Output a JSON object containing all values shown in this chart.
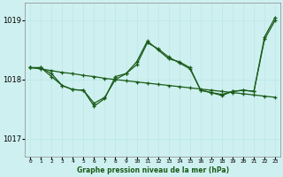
{
  "title": "Graphe pression niveau de la mer (hPa)",
  "bg_color": "#cff0f0",
  "grid_color": "#b8e8e8",
  "line_color": "#1a5c1a",
  "x_labels": [
    "0",
    "1",
    "2",
    "3",
    "4",
    "5",
    "6",
    "7",
    "8",
    "9",
    "10",
    "11",
    "12",
    "13",
    "14",
    "15",
    "16",
    "17",
    "18",
    "19",
    "20",
    "21",
    "22",
    "23"
  ],
  "ylim": [
    1016.7,
    1019.3
  ],
  "yticks": [
    1017,
    1018,
    1019
  ],
  "series1_x": [
    0,
    1,
    2,
    3,
    4,
    5,
    6,
    7,
    8,
    9,
    10,
    11,
    12,
    13,
    14,
    15,
    16,
    17,
    18,
    19,
    20,
    21,
    22,
    23
  ],
  "series1": [
    1018.2,
    1018.2,
    1018.1,
    1017.9,
    1017.83,
    1017.82,
    1017.55,
    1017.68,
    1018.05,
    1018.1,
    1018.3,
    1018.65,
    1018.5,
    1018.35,
    1018.3,
    1018.2,
    1017.82,
    1017.78,
    1017.73,
    1017.8,
    1017.82,
    1017.8,
    1018.72,
    1019.05
  ],
  "series2_x": [
    0,
    1,
    2,
    3,
    4,
    5,
    6,
    7,
    8,
    9,
    10,
    11,
    12,
    13,
    14,
    15,
    16,
    17,
    18,
    19,
    20,
    21,
    22,
    23
  ],
  "series2": [
    1018.2,
    1018.18,
    1018.15,
    1018.12,
    1018.1,
    1018.07,
    1018.05,
    1018.02,
    1018.0,
    1017.98,
    1017.96,
    1017.94,
    1017.92,
    1017.9,
    1017.88,
    1017.86,
    1017.84,
    1017.82,
    1017.8,
    1017.78,
    1017.76,
    1017.74,
    1017.72,
    1017.7
  ],
  "series3_x": [
    0,
    1,
    2,
    3,
    4,
    5,
    6,
    7,
    8,
    9,
    10,
    11,
    12,
    13,
    14,
    15,
    16,
    17,
    18,
    19,
    20,
    21,
    22,
    23
  ],
  "series3": [
    1018.2,
    1018.2,
    1018.05,
    1017.9,
    1017.83,
    1017.82,
    1017.6,
    1017.7,
    1018.0,
    1018.1,
    1018.25,
    1018.62,
    1018.52,
    1018.38,
    1018.28,
    1018.18,
    1017.82,
    1017.78,
    1017.75,
    1017.8,
    1017.82,
    1017.8,
    1018.68,
    1019.0
  ]
}
